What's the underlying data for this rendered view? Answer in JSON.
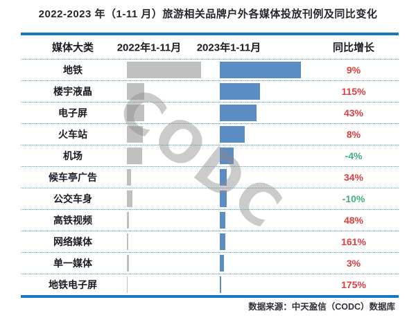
{
  "title": "2022-2023 年（1-11 月）旅游相关品牌户外各媒体投放刊例及同比变化",
  "source": "数据来源：中天盈信（CODC）数据库",
  "watermark": "CODC",
  "columns": [
    "媒体大类",
    "2022年1-11月",
    "2023年1-11月",
    "同比增长"
  ],
  "colors": {
    "bar_2022": "#c0c0c0",
    "bar_2023": "#5b8dc4",
    "yoy_up": "#e03e3e",
    "yoy_down": "#3fb27d",
    "frame_line": "#1878bf",
    "row_divider": "#4d9cc2",
    "watermark_gray": "#8c8c8c"
  },
  "chart_data": {
    "type": "bar",
    "orientation": "horizontal",
    "title": "2022-2023 年（1-11 月）旅游相关品牌户外各媒体投放刊例及同比变化",
    "categories": [
      "地铁",
      "楼宇液晶",
      "电子屏",
      "火车站",
      "机场",
      "候车亭广告",
      "公交车身",
      "高铁视频",
      "网络媒体",
      "单一媒体",
      "地铁电子屏"
    ],
    "series": [
      {
        "name": "2022年1-11月",
        "color": "#c0c0c0",
        "values": [
          107,
          25,
          25,
          23,
          22,
          6,
          8,
          3,
          2,
          3,
          1
        ]
      },
      {
        "name": "2023年1-11月",
        "color": "#5b8dc4",
        "values": [
          117,
          58,
          53,
          36,
          20,
          10,
          10,
          8,
          8,
          6,
          2
        ]
      }
    ],
    "values_note": "bar lengths in screen px; absolute spend values are not labeled in the chart",
    "yoy_labels": [
      "9%",
      "115%",
      "43%",
      "8%",
      "-4%",
      "34%",
      "-10%",
      "48%",
      "161%",
      "3%",
      "175%"
    ],
    "legend_position": "column headers",
    "grid": "dotted row separators"
  },
  "rows": [
    {
      "label": "地铁",
      "w2022": 107,
      "w2023": 117,
      "yoy": "9%",
      "trend": "up"
    },
    {
      "label": "楼宇液晶",
      "w2022": 25,
      "w2023": 58,
      "yoy": "115%",
      "trend": "up"
    },
    {
      "label": "电子屏",
      "w2022": 25,
      "w2023": 53,
      "yoy": "43%",
      "trend": "up"
    },
    {
      "label": "火车站",
      "w2022": 23,
      "w2023": 36,
      "yoy": "8%",
      "trend": "up"
    },
    {
      "label": "机场",
      "w2022": 22,
      "w2023": 20,
      "yoy": "-4%",
      "trend": "down"
    },
    {
      "label": "候车亭广告",
      "w2022": 6,
      "w2023": 10,
      "yoy": "34%",
      "trend": "up"
    },
    {
      "label": "公交车身",
      "w2022": 8,
      "w2023": 10,
      "yoy": "-10%",
      "trend": "down"
    },
    {
      "label": "高铁视频",
      "w2022": 3,
      "w2023": 8,
      "yoy": "48%",
      "trend": "up"
    },
    {
      "label": "网络媒体",
      "w2022": 2,
      "w2023": 8,
      "yoy": "161%",
      "trend": "up"
    },
    {
      "label": "单一媒体",
      "w2022": 3,
      "w2023": 6,
      "yoy": "3%",
      "trend": "up"
    },
    {
      "label": "地铁电子屏",
      "w2022": 1,
      "w2023": 2,
      "yoy": "175%",
      "trend": "up"
    }
  ]
}
